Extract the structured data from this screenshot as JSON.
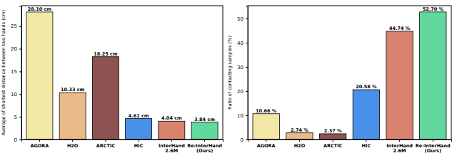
{
  "chart_data": [
    {
      "type": "bar",
      "ylabel": "Average of shortest distance between two hands (cm)",
      "categories": [
        "AGORA",
        "H2O",
        "ARCTIC",
        "HIC",
        "InterHand\n2.6M",
        "Re:InterHand\n(Ours)"
      ],
      "values": [
        28.1,
        10.33,
        18.25,
        4.61,
        4.04,
        3.84
      ],
      "value_labels": [
        "28.10 cm",
        "10.33 cm",
        "18.25 cm",
        "4.61 cm",
        "4.04 cm",
        "3.84 cm"
      ],
      "colors": [
        "#f2e8a6",
        "#eab98a",
        "#8c5352",
        "#4a90e8",
        "#d9826e",
        "#62d89e"
      ],
      "ylim": [
        0,
        29.5
      ],
      "yticks": [
        0,
        5,
        10,
        15,
        20,
        25
      ],
      "data_labels": true
    },
    {
      "type": "bar",
      "ylabel": "Ratio of contacting samples (%)",
      "categories": [
        "AGORA",
        "H2O",
        "ARCTIC",
        "HIC",
        "InterHand\n2.6M",
        "Re:InterHand\n(Ours)"
      ],
      "values": [
        10.66,
        2.74,
        2.37,
        20.58,
        44.74,
        52.7
      ],
      "value_labels": [
        "10.66 %",
        "2.74 %",
        "2.37 %",
        "20.58 %",
        "44.74 %",
        "52.70 %"
      ],
      "colors": [
        "#f2e8a6",
        "#eab98a",
        "#8c5352",
        "#4a90e8",
        "#d9826e",
        "#62d89e"
      ],
      "ylim": [
        0,
        55.3
      ],
      "yticks": [
        0,
        10,
        20,
        30,
        40,
        50
      ],
      "data_labels": true
    }
  ]
}
